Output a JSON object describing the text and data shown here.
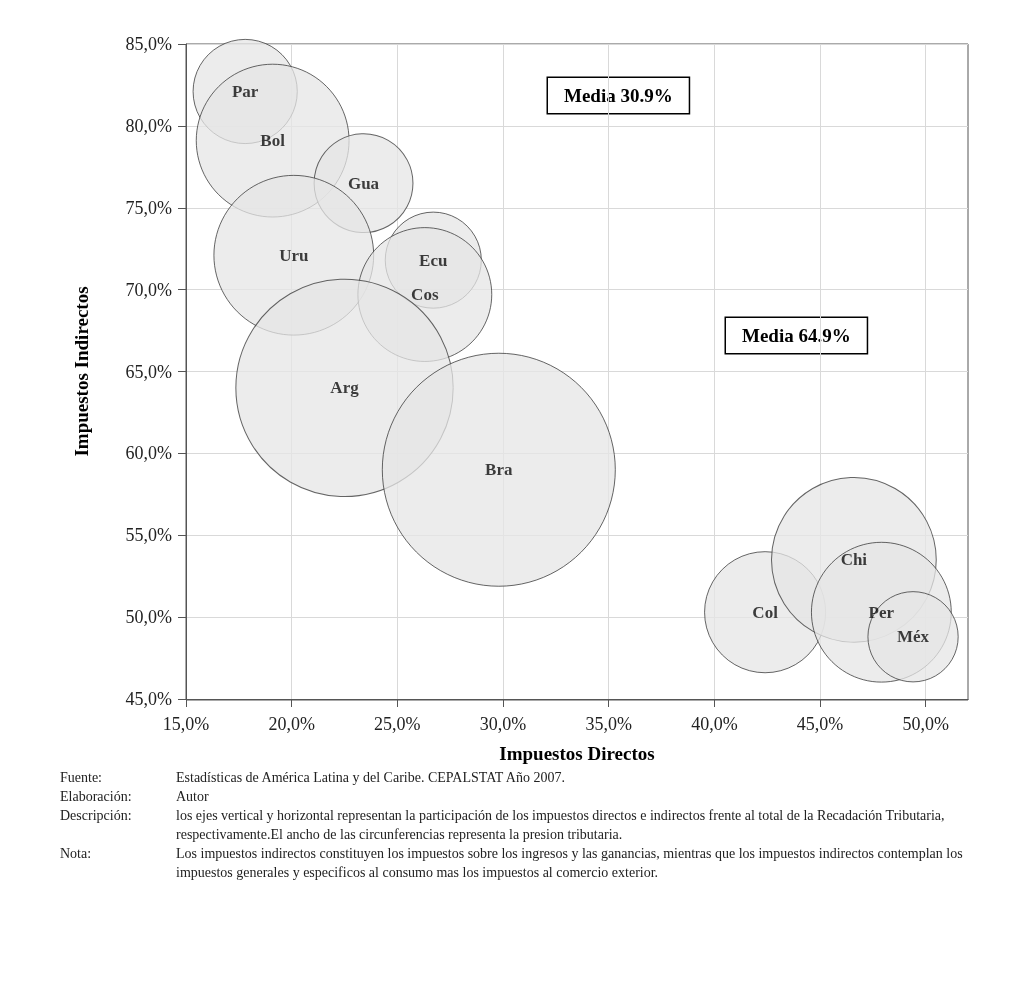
{
  "chart_data": {
    "type": "bubble",
    "xlabel": "Impuestos Directos",
    "ylabel": "Impuestos Indirectos",
    "xlim": [
      15,
      52
    ],
    "ylim": [
      45,
      85
    ],
    "xticks": [
      {
        "value": 15,
        "label": "15,0%"
      },
      {
        "value": 20,
        "label": "20,0%"
      },
      {
        "value": 25,
        "label": "25,0%"
      },
      {
        "value": 30,
        "label": "30,0%"
      },
      {
        "value": 35,
        "label": "35,0%"
      },
      {
        "value": 40,
        "label": "40,0%"
      },
      {
        "value": 45,
        "label": "45,0%"
      },
      {
        "value": 50,
        "label": "50,0%"
      }
    ],
    "yticks": [
      {
        "value": 45,
        "label": "45,0%"
      },
      {
        "value": 50,
        "label": "50,0%"
      },
      {
        "value": 55,
        "label": "55,0%"
      },
      {
        "value": 60,
        "label": "60,0%"
      },
      {
        "value": 65,
        "label": "65,0%"
      },
      {
        "value": 70,
        "label": "70,0%"
      },
      {
        "value": 75,
        "label": "75,0%"
      },
      {
        "value": 80,
        "label": "80,0%"
      },
      {
        "value": 85,
        "label": "85,0%"
      }
    ],
    "grid": true,
    "legend": false,
    "series": [
      {
        "name": "Par",
        "color": "#e6e6e6",
        "x": [
          17.8
        ],
        "values": [
          82.1
        ],
        "sizes": [
          0.2
        ]
      },
      {
        "name": "Bol",
        "color": "#e6e6e6",
        "x": [
          19.1
        ],
        "values": [
          79.1
        ],
        "sizes": [
          0.43
        ]
      },
      {
        "name": "Gua",
        "color": "#e6e6e6",
        "x": [
          23.4
        ],
        "values": [
          76.5
        ],
        "sizes": [
          0.18
        ]
      },
      {
        "name": "Uru",
        "color": "#e6e6e6",
        "x": [
          20.1
        ],
        "values": [
          72.1
        ],
        "sizes": [
          0.47
        ]
      },
      {
        "name": "Ecu",
        "color": "#e6e6e6",
        "x": [
          26.7
        ],
        "values": [
          71.8
        ],
        "sizes": [
          0.17
        ]
      },
      {
        "name": "Cos",
        "color": "#e6e6e6",
        "x": [
          26.3
        ],
        "values": [
          69.7
        ],
        "sizes": [
          0.33
        ]
      },
      {
        "name": "Arg",
        "color": "#e6e6e6",
        "x": [
          22.5
        ],
        "values": [
          64.0
        ],
        "sizes": [
          0.87
        ]
      },
      {
        "name": "Bra",
        "color": "#e6e6e6",
        "x": [
          29.8
        ],
        "values": [
          59.0
        ],
        "sizes": [
          1
        ]
      },
      {
        "name": "Col",
        "color": "#e6e6e6",
        "x": [
          42.4
        ],
        "values": [
          50.3
        ],
        "sizes": [
          0.27
        ]
      },
      {
        "name": "Chi",
        "color": "#e6e6e6",
        "x": [
          46.6
        ],
        "values": [
          53.5
        ],
        "sizes": [
          0.5
        ]
      },
      {
        "name": "Per",
        "color": "#e6e6e6",
        "x": [
          47.9
        ],
        "values": [
          50.3
        ],
        "sizes": [
          0.36
        ]
      },
      {
        "name": "Méx",
        "color": "#e6e6e6",
        "x": [
          49.4
        ],
        "values": [
          48.8
        ],
        "sizes": [
          0.15
        ]
      }
    ],
    "annotations": [
      "Media 30.9%",
      "Media 64.9%",
      "Fuente:",
      "Estadísticas de América Latina y del Caribe. CEPALSTAT Año 2007.",
      "Elaboración:",
      "Autor",
      "Descripción:",
      "los ejes vertical y horizontal representan la participación de los impuestos directos e indirectos frente al total de la Recadación Tributaria, respectivamente.El ancho de las circunferencias representa la presion tributaria.",
      "Nota:",
      "Los impuestos indirectos constituyen los impuestos sobre los ingresos y las ganancias, mientras que los impuestos indirectos contemplan los impuestos generales y especificos al  consumo mas los impuestos al comercio exterior."
    ]
  }
}
